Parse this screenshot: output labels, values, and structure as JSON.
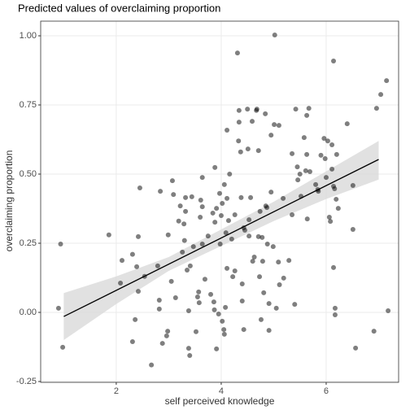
{
  "chart_data": {
    "type": "scatter",
    "title": "Predicted values of overclaiming proportion",
    "xlabel": "self perceived knowledge",
    "ylabel": "overclaiming proportion",
    "xlim": [
      0.56,
      7.38
    ],
    "ylim": [
      -0.253,
      1.053
    ],
    "xticks": [
      2,
      4,
      6
    ],
    "yticks": [
      {
        "value": -0.25,
        "label": "-0.25"
      },
      {
        "value": 0,
        "label": "0.00"
      },
      {
        "value": 0.25,
        "label": "0.25"
      },
      {
        "value": 0.5,
        "label": "0.50"
      },
      {
        "value": 0.75,
        "label": "0.75"
      },
      {
        "value": 1,
        "label": "1.00"
      }
    ],
    "grid": true,
    "color": "#000000",
    "alpha": 0.5,
    "x": [
      0.94,
      0.9,
      0.98,
      1.86,
      2.08,
      2.11,
      2.31,
      2.36,
      2.42,
      2.42,
      2.45,
      2.39,
      2.31,
      2.54,
      2.67,
      2.79,
      2.84,
      2.82,
      2.82,
      2.88,
      2.96,
      2.98,
      2.99,
      3.05,
      3.07,
      3.09,
      3.13,
      3.19,
      3.22,
      3.26,
      3.32,
      3.32,
      3.29,
      3.3,
      3.35,
      3.38,
      3.38,
      3.4,
      3.41,
      3.47,
      3.44,
      3.52,
      3.57,
      3.55,
      3.58,
      3.6,
      3.61,
      3.64,
      3.64,
      3.64,
      3.69,
      3.75,
      3.8,
      3.84,
      3.86,
      3.87,
      3.88,
      3.88,
      3.91,
      3.91,
      3.95,
      3.97,
      3.98,
      4.0,
      4.02,
      4.02,
      4.05,
      4.06,
      4.08,
      4.09,
      4.06,
      4.11,
      4.11,
      4.11,
      4.14,
      4.16,
      4.2,
      4.22,
      4.26,
      4.26,
      4.31,
      4.33,
      4.34,
      4.34,
      4.37,
      4.38,
      4.4,
      4.4,
      4.43,
      4.43,
      4.45,
      4.5,
      4.51,
      4.53,
      4.53,
      4.56,
      4.59,
      4.6,
      4.63,
      4.67,
      4.68,
      4.71,
      4.71,
      4.73,
      4.74,
      4.76,
      4.78,
      4.79,
      4.81,
      4.84,
      4.85,
      4.87,
      4.88,
      4.91,
      4.91,
      4.95,
      4.95,
      4.99,
      5.01,
      5.02,
      5.05,
      5.09,
      5.1,
      5.11,
      5.18,
      5.19,
      5.29,
      5.35,
      5.35,
      5.4,
      5.42,
      5.45,
      5.46,
      5.5,
      5.52,
      5.58,
      5.61,
      5.63,
      5.63,
      5.64,
      5.67,
      5.69,
      5.8,
      5.84,
      5.85,
      5.9,
      5.96,
      5.98,
      6.0,
      6.03,
      6.06,
      6.08,
      6.11,
      6.11,
      6.14,
      6.14,
      6.14,
      6.16,
      6.17,
      6.17,
      6.19,
      6.2,
      6.23,
      6.4,
      6.51,
      6.51,
      6.56,
      6.91,
      6.96,
      7.04,
      7.15,
      7.18
    ],
    "y": [
      0.247,
      0.015,
      -0.126,
      0.28,
      0.106,
      0.188,
      0.21,
      -0.026,
      0.274,
      0.076,
      0.45,
      0.165,
      -0.106,
      0.13,
      -0.19,
      0.168,
      0.438,
      0.044,
      0.012,
      -0.112,
      -0.085,
      -0.068,
      0.28,
      0.112,
      0.476,
      0.426,
      0.053,
      0.33,
      0.385,
      0.218,
      0.415,
      0.365,
      0.32,
      0.26,
      0.153,
      0.006,
      -0.13,
      -0.156,
      0.168,
      0.238,
      0.418,
      -0.07,
      0.074,
      0.056,
      0.035,
      0.344,
      0.406,
      0.488,
      0.382,
      0.247,
      0.12,
      0.276,
      0.065,
      0.359,
      0.038,
      0.009,
      0.524,
      0.326,
      0.376,
      -0.132,
      -0.006,
      0.43,
      0.247,
      0.35,
      0.394,
      -0.032,
      -0.062,
      -0.079,
      0.018,
      0.288,
      0.462,
      0.659,
      0.412,
      0.159,
      0.332,
      0.5,
      0.265,
      0.129,
      0.15,
      0.353,
      0.938,
      0.62,
      0.73,
      0.688,
      0.58,
      0.415,
      0.103,
      0.041,
      0.306,
      -0.062,
      0.297,
      0.735,
      0.591,
      0.335,
      0.276,
      0.415,
      0.691,
      0.185,
      0.2,
      0.73,
      0.735,
      0.585,
      0.274,
      0.129,
      0.365,
      -0.026,
      0.271,
      0.185,
      0.071,
      0.718,
      0.385,
      0.379,
      0.247,
      0.032,
      -0.065,
      0.641,
      0.435,
      0.238,
      0.679,
      1.003,
      0.015,
      0.182,
      0.676,
      0.1,
      0.412,
      0.124,
      0.188,
      0.574,
      0.353,
      0.029,
      0.735,
      0.526,
      0.479,
      0.5,
      0.42,
      0.632,
      0.512,
      0.571,
      0.712,
      0.338,
      0.738,
      0.509,
      0.462,
      0.444,
      0.438,
      0.568,
      0.629,
      0.556,
      0.488,
      0.62,
      0.344,
      0.329,
      0.518,
      0.606,
      0.909,
      0.456,
      0.162,
      0.447,
      0.015,
      -0.009,
      0.409,
      0.571,
      0.376,
      0.682,
      0.3,
      0.459,
      -0.129,
      -0.068,
      0.738,
      0.788,
      0.838,
      0.006
    ],
    "fit": {
      "color": "#000000",
      "x": [
        1,
        7
      ],
      "y": [
        -0.015,
        0.553
      ]
    },
    "band": {
      "color": "#d9d9d9",
      "x": [
        1,
        2,
        3,
        4,
        5,
        6,
        7
      ],
      "lower": [
        -0.1,
        0.03,
        0.15,
        0.24,
        0.33,
        0.41,
        0.48
      ],
      "upper": [
        0.07,
        0.13,
        0.2,
        0.3,
        0.4,
        0.51,
        0.62
      ]
    }
  }
}
